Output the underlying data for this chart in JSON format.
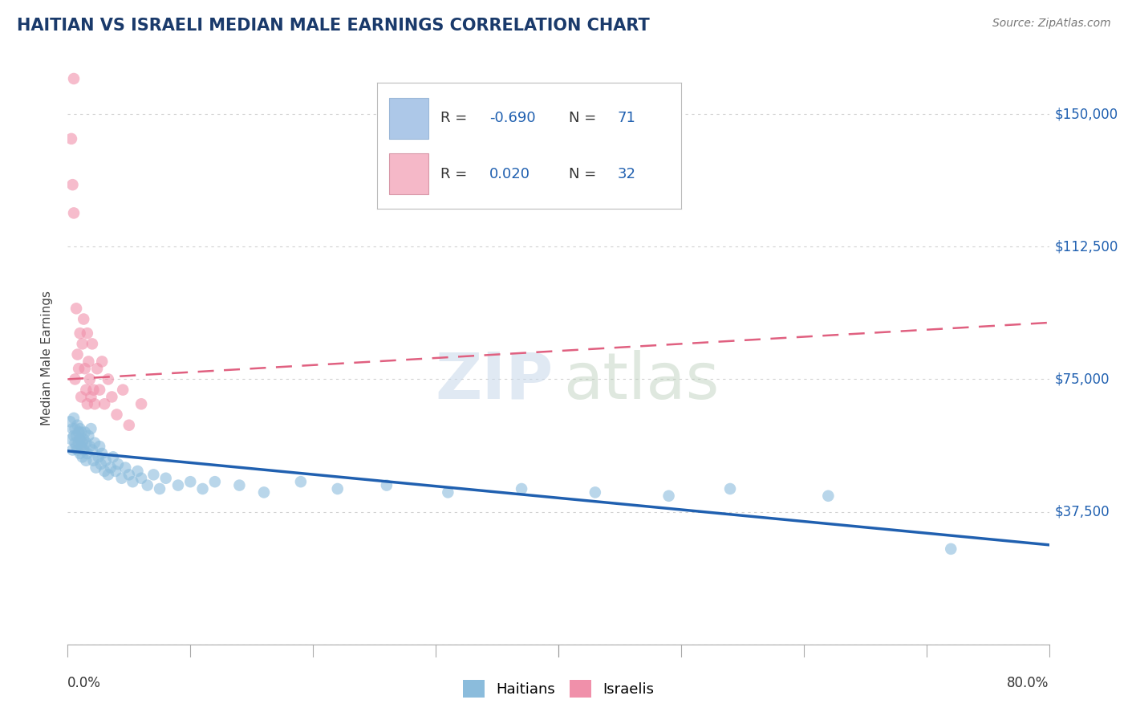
{
  "title": "HAITIAN VS ISRAELI MEDIAN MALE EARNINGS CORRELATION CHART",
  "source": "Source: ZipAtlas.com",
  "ylabel": "Median Male Earnings",
  "yticks": [
    0,
    37500,
    75000,
    112500,
    150000
  ],
  "ytick_labels": [
    "",
    "$37,500",
    "$75,000",
    "$112,500",
    "$150,000"
  ],
  "xlim": [
    0.0,
    0.8
  ],
  "ylim": [
    0,
    162000
  ],
  "title_color": "#1a3a6b",
  "source_color": "#777777",
  "background_color": "#ffffff",
  "grid_color": "#cccccc",
  "haitian_R": "-0.690",
  "haitian_N": "71",
  "israeli_R": "0.020",
  "israeli_N": "32",
  "haitian_legend_color": "#adc8e8",
  "israeli_legend_color": "#f5b8c8",
  "haitian_scatter_color": "#8bbcdc",
  "israeli_scatter_color": "#f090aa",
  "haitian_line_color": "#2060b0",
  "israeli_line_color": "#e06080",
  "r_color": "#2060b0",
  "n_color": "#2060b0",
  "label_color": "#333333",
  "haitian_x": [
    0.002,
    0.003,
    0.004,
    0.004,
    0.005,
    0.005,
    0.006,
    0.006,
    0.007,
    0.007,
    0.008,
    0.008,
    0.009,
    0.009,
    0.01,
    0.01,
    0.01,
    0.011,
    0.011,
    0.012,
    0.012,
    0.013,
    0.013,
    0.014,
    0.015,
    0.015,
    0.016,
    0.017,
    0.018,
    0.019,
    0.02,
    0.021,
    0.022,
    0.023,
    0.025,
    0.026,
    0.027,
    0.028,
    0.03,
    0.031,
    0.033,
    0.035,
    0.037,
    0.039,
    0.041,
    0.044,
    0.047,
    0.05,
    0.053,
    0.057,
    0.06,
    0.065,
    0.07,
    0.075,
    0.08,
    0.09,
    0.1,
    0.11,
    0.12,
    0.14,
    0.16,
    0.19,
    0.22,
    0.26,
    0.31,
    0.37,
    0.43,
    0.49,
    0.54,
    0.62,
    0.72
  ],
  "haitian_y": [
    63000,
    58000,
    61000,
    55000,
    59000,
    64000,
    57000,
    61000,
    56000,
    59000,
    55000,
    62000,
    60000,
    57000,
    54000,
    61000,
    58000,
    56000,
    60000,
    57000,
    53000,
    58000,
    55000,
    60000,
    57000,
    52000,
    54000,
    59000,
    56000,
    61000,
    55000,
    52000,
    57000,
    50000,
    53000,
    56000,
    51000,
    54000,
    49000,
    52000,
    48000,
    50000,
    53000,
    49000,
    51000,
    47000,
    50000,
    48000,
    46000,
    49000,
    47000,
    45000,
    48000,
    44000,
    47000,
    45000,
    46000,
    44000,
    46000,
    45000,
    43000,
    46000,
    44000,
    45000,
    43000,
    44000,
    43000,
    42000,
    44000,
    42000,
    27000
  ],
  "israeli_x": [
    0.003,
    0.004,
    0.005,
    0.005,
    0.006,
    0.007,
    0.008,
    0.009,
    0.01,
    0.011,
    0.012,
    0.013,
    0.014,
    0.015,
    0.016,
    0.016,
    0.017,
    0.018,
    0.019,
    0.02,
    0.021,
    0.022,
    0.024,
    0.026,
    0.028,
    0.03,
    0.033,
    0.036,
    0.04,
    0.045,
    0.05,
    0.06
  ],
  "israeli_y": [
    143000,
    130000,
    122000,
    160000,
    75000,
    95000,
    82000,
    78000,
    88000,
    70000,
    85000,
    92000,
    78000,
    72000,
    68000,
    88000,
    80000,
    75000,
    70000,
    85000,
    72000,
    68000,
    78000,
    72000,
    80000,
    68000,
    75000,
    70000,
    65000,
    72000,
    62000,
    68000
  ]
}
